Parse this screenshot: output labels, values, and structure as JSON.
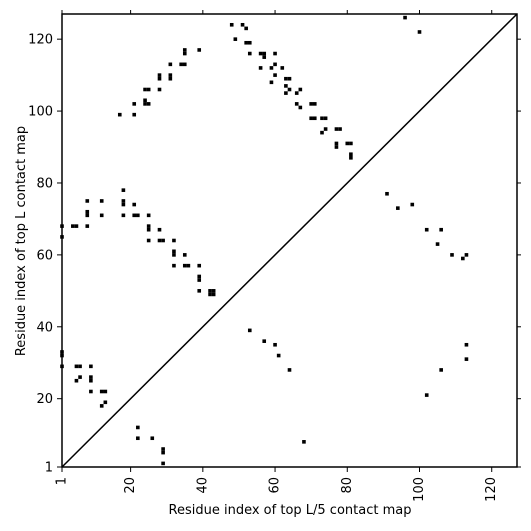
{
  "chart_data": {
    "type": "scatter",
    "title": "",
    "xlabel": "Residue index of top L/5 contact map",
    "ylabel": "Residue index of top L contact map",
    "xlim": [
      1,
      127
    ],
    "ylim": [
      1,
      127
    ],
    "x_ticks": [
      1,
      20,
      40,
      60,
      80,
      100,
      120
    ],
    "y_ticks": [
      1,
      20,
      40,
      60,
      80,
      100,
      120
    ],
    "grid": false,
    "legend": "none",
    "colors": {
      "marker": "#000000",
      "diagonal": "#000000",
      "frame": "#000000",
      "background": "#ffffff"
    },
    "diagonal": {
      "from": [
        1,
        1
      ],
      "to": [
        127,
        127
      ]
    },
    "marker_shape": "square",
    "series": [
      {
        "points": [
          [
            48,
            124
          ],
          [
            49,
            120
          ],
          [
            51,
            124
          ],
          [
            52,
            123
          ],
          [
            52,
            119
          ],
          [
            53,
            119
          ],
          [
            53,
            116
          ],
          [
            56,
            116
          ],
          [
            57,
            116
          ],
          [
            56,
            112
          ],
          [
            57,
            115
          ],
          [
            59,
            112
          ],
          [
            60,
            116
          ],
          [
            60,
            113
          ],
          [
            60,
            110
          ],
          [
            59,
            108
          ],
          [
            62,
            112
          ],
          [
            63,
            109
          ],
          [
            64,
            109
          ],
          [
            63,
            107
          ],
          [
            64,
            106
          ],
          [
            66,
            105
          ],
          [
            63,
            105
          ],
          [
            67,
            106
          ],
          [
            66,
            102
          ],
          [
            67,
            101
          ],
          [
            70,
            102
          ],
          [
            71,
            102
          ],
          [
            70,
            98
          ],
          [
            71,
            98
          ],
          [
            73,
            98
          ],
          [
            74,
            98
          ],
          [
            73,
            94
          ],
          [
            74,
            95
          ],
          [
            77,
            95
          ],
          [
            78,
            95
          ],
          [
            77,
            91
          ],
          [
            77,
            90
          ],
          [
            80,
            91
          ],
          [
            81,
            91
          ],
          [
            81,
            88
          ],
          [
            81,
            87
          ],
          [
            39,
            117
          ],
          [
            35,
            117
          ],
          [
            35,
            116
          ],
          [
            34,
            113
          ],
          [
            35,
            113
          ],
          [
            31,
            113
          ],
          [
            31,
            110
          ],
          [
            31,
            109
          ],
          [
            28,
            110
          ],
          [
            28,
            109
          ],
          [
            28,
            106
          ],
          [
            25,
            106
          ],
          [
            24,
            106
          ],
          [
            24,
            103
          ],
          [
            24,
            102
          ],
          [
            25,
            102
          ],
          [
            21,
            102
          ],
          [
            21,
            99
          ],
          [
            17,
            99
          ],
          [
            96,
            126
          ],
          [
            100,
            122
          ],
          [
            1,
            68
          ],
          [
            1,
            65
          ],
          [
            4,
            68
          ],
          [
            5,
            68
          ],
          [
            8,
            75
          ],
          [
            8,
            72
          ],
          [
            8,
            71
          ],
          [
            8,
            68
          ],
          [
            12,
            75
          ],
          [
            12,
            71
          ],
          [
            18,
            78
          ],
          [
            18,
            75
          ],
          [
            18,
            74
          ],
          [
            18,
            71
          ],
          [
            21,
            74
          ],
          [
            21,
            71
          ],
          [
            22,
            71
          ],
          [
            25,
            71
          ],
          [
            25,
            68
          ],
          [
            25,
            67
          ],
          [
            25,
            64
          ],
          [
            28,
            67
          ],
          [
            28,
            64
          ],
          [
            29,
            64
          ],
          [
            32,
            64
          ],
          [
            32,
            61
          ],
          [
            32,
            60
          ],
          [
            32,
            57
          ],
          [
            35,
            60
          ],
          [
            35,
            57
          ],
          [
            36,
            57
          ],
          [
            39,
            57
          ],
          [
            39,
            54
          ],
          [
            39,
            53
          ],
          [
            39,
            50
          ],
          [
            42,
            50
          ],
          [
            43,
            50
          ],
          [
            42,
            49
          ],
          [
            43,
            49
          ],
          [
            1,
            33
          ],
          [
            1,
            32
          ],
          [
            1,
            29
          ],
          [
            5,
            29
          ],
          [
            6,
            29
          ],
          [
            6,
            26
          ],
          [
            5,
            25
          ],
          [
            9,
            29
          ],
          [
            9,
            26
          ],
          [
            9,
            25
          ],
          [
            9,
            22
          ],
          [
            12,
            22
          ],
          [
            13,
            22
          ],
          [
            13,
            19
          ],
          [
            12,
            18
          ],
          [
            22,
            12
          ],
          [
            22,
            9
          ],
          [
            26,
            9
          ],
          [
            29,
            6
          ],
          [
            29,
            5
          ],
          [
            29,
            2
          ],
          [
            68,
            8
          ],
          [
            53,
            39
          ],
          [
            57,
            36
          ],
          [
            60,
            35
          ],
          [
            61,
            32
          ],
          [
            64,
            28
          ],
          [
            91,
            77
          ],
          [
            94,
            73
          ],
          [
            98,
            74
          ],
          [
            102,
            67
          ],
          [
            106,
            67
          ],
          [
            105,
            63
          ],
          [
            109,
            60
          ],
          [
            112,
            59
          ],
          [
            113,
            60
          ],
          [
            113,
            35
          ],
          [
            113,
            31
          ],
          [
            106,
            28
          ],
          [
            102,
            21
          ]
        ]
      }
    ]
  }
}
